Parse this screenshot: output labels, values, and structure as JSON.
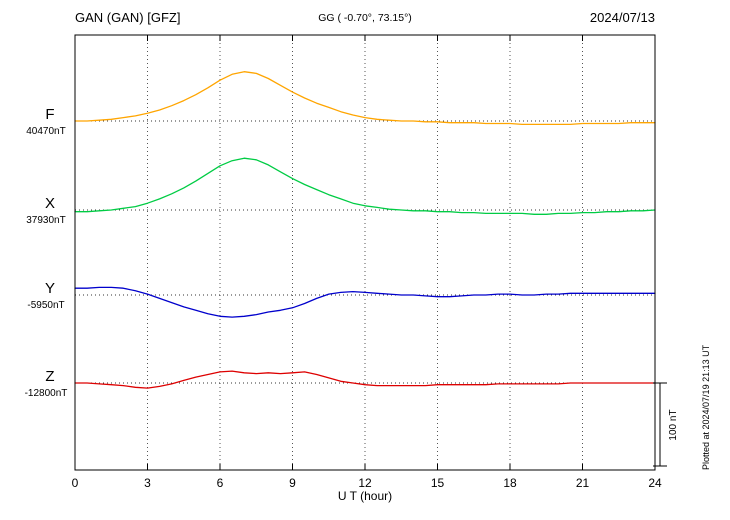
{
  "header": {
    "station": "GAN (GAN)  [GFZ]",
    "coords": "GG ( -0.70°,  73.15°)",
    "date": "2024/07/13"
  },
  "axis": {
    "xlabel": "U T (hour)"
  },
  "side": {
    "plotted_at": "Plotted at 2024/07/19 21:13 UT",
    "scale_label": "100 nT"
  },
  "chart_data": {
    "type": "line",
    "title": "GAN (GAN)  [GFZ] magnetogram 2024/07/13",
    "xlabel": "U T (hour)",
    "xlim": [
      0,
      24
    ],
    "xticks": [
      0,
      3,
      6,
      9,
      12,
      15,
      18,
      21,
      24
    ],
    "grid": "dotted vertical lines every 3 h; dotted horizontal baseline per component",
    "scale_bar_nT": 100,
    "x": [
      0,
      0.5,
      1,
      1.5,
      2,
      2.5,
      3,
      3.5,
      4,
      4.5,
      5,
      5.5,
      6,
      6.5,
      7,
      7.5,
      8,
      8.5,
      9,
      9.5,
      10,
      10.5,
      11,
      11.5,
      12,
      12.5,
      13,
      13.5,
      14,
      14.5,
      15,
      15.5,
      16,
      16.5,
      17,
      17.5,
      18,
      18.5,
      19,
      19.5,
      20,
      20.5,
      21,
      21.5,
      22,
      22.5,
      23,
      23.5,
      24
    ],
    "series": [
      {
        "name": "F",
        "baseline_label": "40470nT",
        "baseline_nT": 40470,
        "color": "#FFA500",
        "values": [
          0,
          0,
          1,
          2,
          4,
          6,
          9,
          13,
          18,
          24,
          31,
          39,
          48,
          55,
          58,
          56,
          50,
          42,
          34,
          27,
          21,
          16,
          11,
          7,
          4,
          2,
          1,
          0,
          0,
          -1,
          -1,
          -2,
          -2,
          -2,
          -3,
          -3,
          -3,
          -4,
          -4,
          -4,
          -4,
          -4,
          -3,
          -3,
          -3,
          -3,
          -2,
          -2,
          -2
        ]
      },
      {
        "name": "X",
        "baseline_label": "37930nT",
        "baseline_nT": 37930,
        "color": "#00CC44",
        "values": [
          -2,
          -2,
          -1,
          0,
          2,
          4,
          8,
          13,
          19,
          26,
          34,
          43,
          52,
          58,
          61,
          59,
          53,
          45,
          37,
          30,
          24,
          18,
          13,
          8,
          5,
          3,
          1,
          0,
          -1,
          -1,
          -2,
          -2,
          -3,
          -3,
          -4,
          -4,
          -4,
          -4,
          -5,
          -5,
          -4,
          -4,
          -3,
          -3,
          -2,
          -2,
          -1,
          -1,
          0
        ]
      },
      {
        "name": "Y",
        "baseline_label": "-5950nT",
        "baseline_nT": -5950,
        "color": "#0000CC",
        "values": [
          8,
          8,
          9,
          9,
          8,
          5,
          1,
          -4,
          -9,
          -14,
          -18,
          -22,
          -25,
          -26,
          -25,
          -23,
          -20,
          -18,
          -15,
          -10,
          -4,
          1,
          3,
          4,
          3,
          2,
          1,
          0,
          0,
          -1,
          -2,
          -2,
          -1,
          0,
          0,
          1,
          1,
          0,
          0,
          1,
          1,
          2,
          2,
          2,
          2,
          2,
          2,
          2,
          2
        ]
      },
      {
        "name": "Z",
        "baseline_label": "-12800nT",
        "baseline_nT": -12800,
        "color": "#DD0000",
        "values": [
          0,
          0,
          -1,
          -2,
          -3,
          -5,
          -6,
          -4,
          -1,
          3,
          7,
          10,
          13,
          14,
          12,
          11,
          12,
          11,
          12,
          13,
          10,
          6,
          2,
          0,
          -2,
          -3,
          -3,
          -3,
          -3,
          -3,
          -2,
          -2,
          -2,
          -2,
          -2,
          -1,
          -1,
          -1,
          -1,
          -1,
          -1,
          0,
          0,
          0,
          0,
          0,
          0,
          0,
          0
        ]
      }
    ]
  }
}
